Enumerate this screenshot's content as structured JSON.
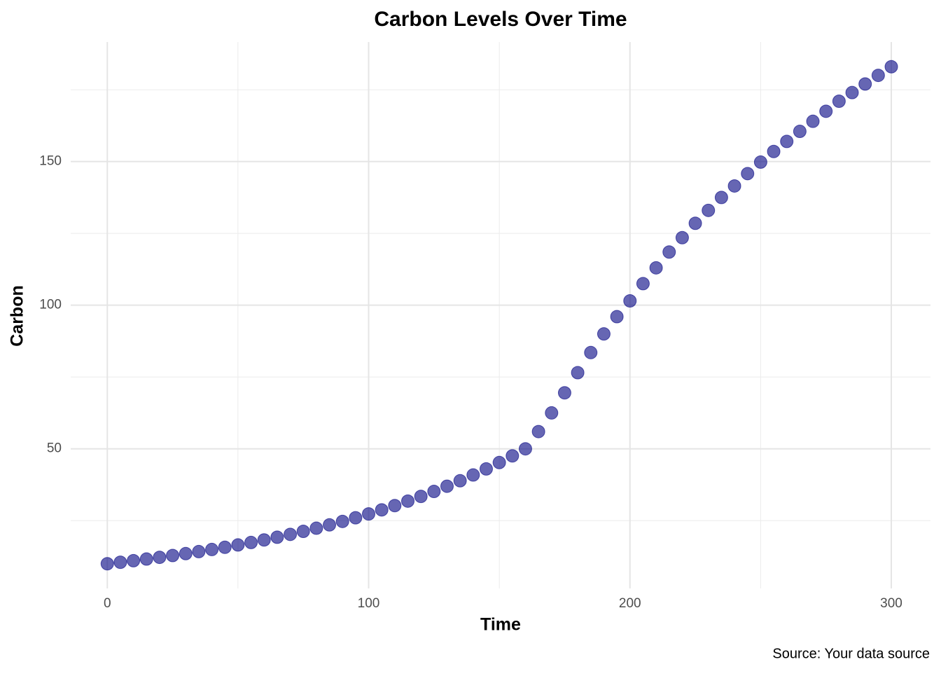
{
  "chart_data": {
    "type": "scatter",
    "title": "Carbon Levels Over Time",
    "x_label": "Time",
    "y_label": "Carbon",
    "caption": "Source: Your data source",
    "x": [
      0,
      5,
      10,
      15,
      20,
      25,
      30,
      35,
      40,
      45,
      50,
      55,
      60,
      65,
      70,
      75,
      80,
      85,
      90,
      95,
      100,
      105,
      110,
      115,
      120,
      125,
      130,
      135,
      140,
      145,
      150,
      155,
      160,
      165,
      170,
      175,
      180,
      185,
      190,
      195,
      200,
      205,
      210,
      215,
      220,
      225,
      230,
      235,
      240,
      245,
      250,
      255,
      260,
      265,
      270,
      275,
      280,
      285,
      290,
      295,
      300
    ],
    "values": [
      10.0,
      10.52,
      11.06,
      11.63,
      12.23,
      12.86,
      13.52,
      14.22,
      14.95,
      15.73,
      16.54,
      17.39,
      18.29,
      19.23,
      20.22,
      21.27,
      22.36,
      23.52,
      24.73,
      26.0,
      27.34,
      28.75,
      30.24,
      31.8,
      33.44,
      35.16,
      36.98,
      38.88,
      40.89,
      43.0,
      45.22,
      47.55,
      50.0,
      56.0,
      62.5,
      69.5,
      76.5,
      83.5,
      90.0,
      96.0,
      101.5,
      107.5,
      113.0,
      118.5,
      123.5,
      128.5,
      133.0,
      137.5,
      141.5,
      145.8,
      149.8,
      153.5,
      157.0,
      160.5,
      164.0,
      167.5,
      171.0,
      174.0,
      177.0,
      180.0,
      183.0
    ],
    "color": "#000080",
    "xlim": [
      -14,
      315
    ],
    "ylim": [
      1.4,
      191.6
    ],
    "xticks": [
      0,
      100,
      200,
      300
    ],
    "yticks": [
      50,
      100,
      150
    ],
    "xminor_ticks": [
      50,
      150,
      250
    ],
    "yminor_ticks": [
      25,
      75,
      125,
      175
    ],
    "grid": true
  }
}
